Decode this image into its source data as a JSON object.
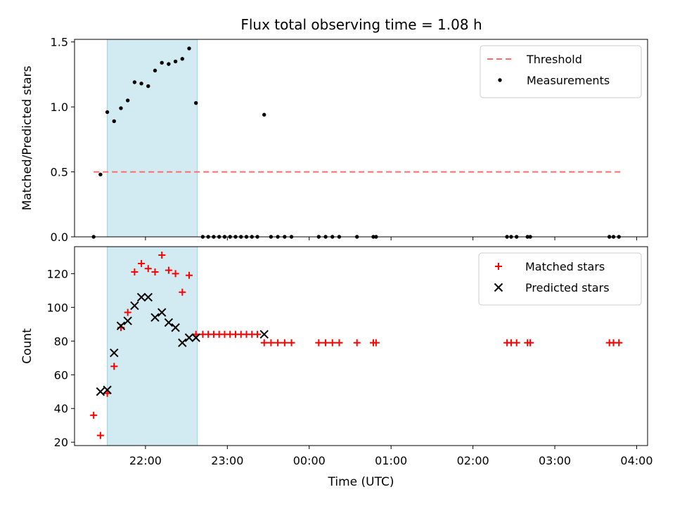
{
  "chart_data": [
    {
      "type": "scatter",
      "title": "Flux total observing time = 1.08 h",
      "xlabel": "",
      "ylabel": "Matched/Predicted stars",
      "xlim": [
        "21:08",
        "04:08"
      ],
      "ylim": [
        0,
        1.52
      ],
      "yticks": [
        "0.0",
        "0.5",
        "1.0",
        "1.5"
      ],
      "xticks": [
        "22:00",
        "23:00",
        "00:00",
        "01:00",
        "02:00",
        "03:00",
        "04:00"
      ],
      "xtick_labels_visible": false,
      "shaded_span": [
        "21:32",
        "22:38"
      ],
      "shade_color": "#add8e6",
      "legend_position": "top-right",
      "threshold": {
        "name": "Threshold",
        "value": 0.5,
        "x_range": [
          "21:22",
          "03:48"
        ],
        "color": "#ff6a6a",
        "style": "dashed"
      },
      "series": [
        {
          "name": "Measurements",
          "marker": "dot",
          "color": "#000000",
          "points": [
            [
              "21:22",
              0.0
            ],
            [
              "21:27",
              0.48
            ],
            [
              "21:32",
              0.96
            ],
            [
              "21:37",
              0.89
            ],
            [
              "21:42",
              0.99
            ],
            [
              "21:47",
              1.05
            ],
            [
              "21:52",
              1.19
            ],
            [
              "21:57",
              1.18
            ],
            [
              "22:02",
              1.16
            ],
            [
              "22:07",
              1.28
            ],
            [
              "22:12",
              1.34
            ],
            [
              "22:17",
              1.33
            ],
            [
              "22:22",
              1.35
            ],
            [
              "22:27",
              1.37
            ],
            [
              "22:32",
              1.45
            ],
            [
              "22:37",
              1.03
            ],
            [
              "22:42",
              0.0
            ],
            [
              "22:46",
              0.0
            ],
            [
              "22:50",
              0.0
            ],
            [
              "22:54",
              0.0
            ],
            [
              "22:58",
              0.0
            ],
            [
              "23:02",
              0.0
            ],
            [
              "23:06",
              0.0
            ],
            [
              "23:10",
              0.0
            ],
            [
              "23:14",
              0.0
            ],
            [
              "23:18",
              0.0
            ],
            [
              "23:22",
              0.0
            ],
            [
              "23:27",
              0.94
            ],
            [
              "23:32",
              0.0
            ],
            [
              "23:37",
              0.0
            ],
            [
              "23:42",
              0.0
            ],
            [
              "23:47",
              0.0
            ],
            [
              "00:07",
              0.0
            ],
            [
              "00:12",
              0.0
            ],
            [
              "00:17",
              0.0
            ],
            [
              "00:22",
              0.0
            ],
            [
              "00:35",
              0.0
            ],
            [
              "00:47",
              0.0
            ],
            [
              "00:49",
              0.0
            ],
            [
              "02:25",
              0.0
            ],
            [
              "02:28",
              0.0
            ],
            [
              "02:32",
              0.0
            ],
            [
              "02:40",
              0.0
            ],
            [
              "02:42",
              0.0
            ],
            [
              "03:40",
              0.0
            ],
            [
              "03:43",
              0.0
            ],
            [
              "03:47",
              0.0
            ]
          ]
        }
      ]
    },
    {
      "type": "scatter",
      "title": "",
      "xlabel": "Time (UTC)",
      "ylabel": "Count",
      "xlim": [
        "21:08",
        "04:08"
      ],
      "ylim": [
        18,
        136
      ],
      "yticks": [
        "20",
        "40",
        "60",
        "80",
        "100",
        "120"
      ],
      "xticks": [
        "22:00",
        "23:00",
        "00:00",
        "01:00",
        "02:00",
        "03:00",
        "04:00"
      ],
      "shaded_span": [
        "21:32",
        "22:38"
      ],
      "shade_color": "#add8e6",
      "legend_position": "top-right",
      "series": [
        {
          "name": "Matched stars",
          "marker": "plus",
          "color": "#ff0000",
          "points": [
            [
              "21:22",
              36
            ],
            [
              "21:27",
              24
            ],
            [
              "21:32",
              49
            ],
            [
              "21:37",
              65
            ],
            [
              "21:42",
              88
            ],
            [
              "21:47",
              97
            ],
            [
              "21:52",
              121
            ],
            [
              "21:57",
              126
            ],
            [
              "22:02",
              123
            ],
            [
              "22:07",
              121
            ],
            [
              "22:12",
              131
            ],
            [
              "22:17",
              122
            ],
            [
              "22:22",
              120
            ],
            [
              "22:27",
              109
            ],
            [
              "22:32",
              119
            ],
            [
              "22:37",
              84
            ],
            [
              "22:42",
              84
            ],
            [
              "22:46",
              84
            ],
            [
              "22:50",
              84
            ],
            [
              "22:54",
              84
            ],
            [
              "22:58",
              84
            ],
            [
              "23:02",
              84
            ],
            [
              "23:06",
              84
            ],
            [
              "23:10",
              84
            ],
            [
              "23:14",
              84
            ],
            [
              "23:18",
              84
            ],
            [
              "23:22",
              84
            ],
            [
              "23:27",
              79
            ],
            [
              "23:32",
              79
            ],
            [
              "23:37",
              79
            ],
            [
              "23:42",
              79
            ],
            [
              "23:47",
              79
            ],
            [
              "00:07",
              79
            ],
            [
              "00:12",
              79
            ],
            [
              "00:17",
              79
            ],
            [
              "00:22",
              79
            ],
            [
              "00:35",
              79
            ],
            [
              "00:47",
              79
            ],
            [
              "00:49",
              79
            ],
            [
              "02:25",
              79
            ],
            [
              "02:28",
              79
            ],
            [
              "02:32",
              79
            ],
            [
              "02:40",
              79
            ],
            [
              "02:42",
              79
            ],
            [
              "03:40",
              79
            ],
            [
              "03:43",
              79
            ],
            [
              "03:47",
              79
            ]
          ]
        },
        {
          "name": "Predicted stars",
          "marker": "x",
          "color": "#000000",
          "points": [
            [
              "21:27",
              50
            ],
            [
              "21:32",
              51
            ],
            [
              "21:37",
              73
            ],
            [
              "21:42",
              89
            ],
            [
              "21:47",
              92
            ],
            [
              "21:52",
              101
            ],
            [
              "21:57",
              106
            ],
            [
              "22:02",
              106
            ],
            [
              "22:07",
              94
            ],
            [
              "22:12",
              97
            ],
            [
              "22:17",
              91
            ],
            [
              "22:22",
              88
            ],
            [
              "22:27",
              79
            ],
            [
              "22:32",
              82
            ],
            [
              "22:37",
              82
            ],
            [
              "23:27",
              84
            ]
          ]
        }
      ]
    }
  ]
}
